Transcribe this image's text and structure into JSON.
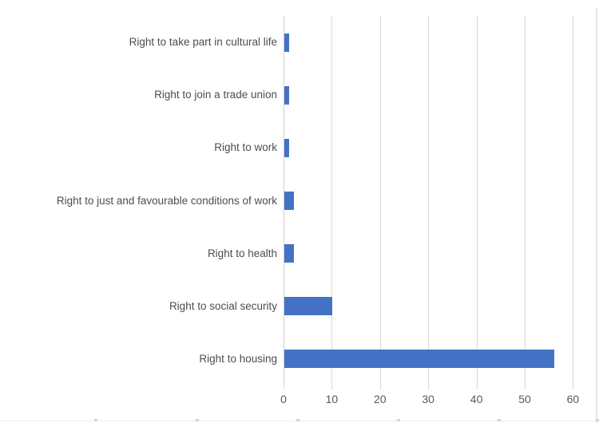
{
  "chart_data": {
    "type": "bar",
    "orientation": "horizontal",
    "title": "",
    "xlabel": "",
    "ylabel": "",
    "categories": [
      "Right to take part in cultural life",
      "Right to join a trade union",
      "Right to work",
      "Right to just and favourable conditions of work",
      "Right to health",
      "Right to social security",
      "Right to housing"
    ],
    "values": [
      1,
      1,
      1,
      2,
      2,
      10,
      56
    ],
    "xlim": [
      0,
      60
    ],
    "x_ticks": [
      0,
      10,
      20,
      30,
      40,
      50,
      60
    ],
    "grid": "vertical-only",
    "legend": "none",
    "bar_color": "#4472C4",
    "gridline_color": "#D9D9D9",
    "axis_label_color": "#595959",
    "background_color": "#FFFFFF"
  }
}
